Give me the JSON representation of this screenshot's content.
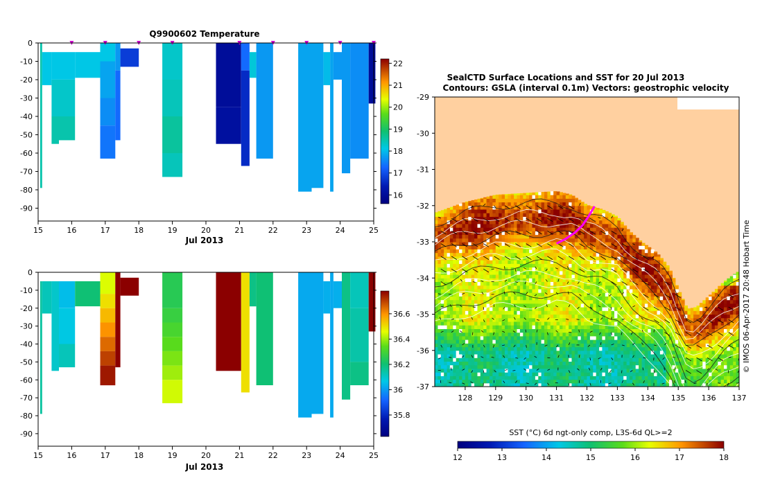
{
  "chart_data": [
    {
      "type": "heatmap",
      "title": "Q9900602  Temperature",
      "xlabel": "Jul 2013",
      "ylabel": "",
      "x_ticks": [
        "15",
        "16",
        "17",
        "18",
        "19",
        "20",
        "21",
        "22",
        "23",
        "24",
        "25"
      ],
      "xlim": [
        15,
        25
      ],
      "y_ticks": [
        "0",
        "-10",
        "-20",
        "-30",
        "-40",
        "-50",
        "-60",
        "-70",
        "-80",
        "-90"
      ],
      "ylim": [
        -97,
        0
      ],
      "profile_markers": [
        16,
        17,
        18,
        19,
        21,
        22,
        23,
        24,
        25
      ],
      "colorbar": {
        "ticks": [
          "16",
          "17",
          "18",
          "19",
          "20",
          "21",
          "22"
        ],
        "range": [
          15.6,
          22.2
        ]
      },
      "profiles": [
        {
          "x0": 15.06,
          "x1": 15.12,
          "depth": 79,
          "top": 0,
          "cells": [
            {
              "d": 79,
              "v": 18.5
            }
          ]
        },
        {
          "x0": 15.12,
          "x1": 15.4,
          "depth": 23,
          "top": 5,
          "cells": [
            {
              "d": 23,
              "v": 18.1
            }
          ]
        },
        {
          "x0": 15.4,
          "x1": 15.62,
          "depth": 55,
          "top": 5,
          "cells": [
            {
              "d": 20,
              "v": 18.1
            },
            {
              "d": 40,
              "v": 18.3
            },
            {
              "d": 55,
              "v": 18.5
            }
          ]
        },
        {
          "x0": 15.62,
          "x1": 16.1,
          "depth": 53,
          "top": 5,
          "cells": [
            {
              "d": 20,
              "v": 18.1
            },
            {
              "d": 40,
              "v": 18.3
            },
            {
              "d": 53,
              "v": 18.5
            }
          ]
        },
        {
          "x0": 16.1,
          "x1": 16.85,
          "depth": 19,
          "top": 5,
          "cells": [
            {
              "d": 19,
              "v": 18.1
            }
          ]
        },
        {
          "x0": 16.85,
          "x1": 17.3,
          "depth": 63,
          "top": 0,
          "cells": [
            {
              "d": 10,
              "v": 18.1
            },
            {
              "d": 30,
              "v": 17.8
            },
            {
              "d": 45,
              "v": 17.6
            },
            {
              "d": 63,
              "v": 17.4
            }
          ]
        },
        {
          "x0": 17.3,
          "x1": 17.45,
          "depth": 53,
          "top": 0,
          "cells": [
            {
              "d": 15,
              "v": 17.7
            },
            {
              "d": 53,
              "v": 17.3
            }
          ]
        },
        {
          "x0": 17.45,
          "x1": 18.0,
          "depth": 13,
          "top": 3,
          "cells": [
            {
              "d": 13,
              "v": 16.8
            }
          ]
        },
        {
          "x0": 18.7,
          "x1": 19.3,
          "depth": 73,
          "top": 0,
          "cells": [
            {
              "d": 20,
              "v": 18.3
            },
            {
              "d": 40,
              "v": 18.4
            },
            {
              "d": 60,
              "v": 18.6
            },
            {
              "d": 73,
              "v": 18.4
            }
          ]
        },
        {
          "x0": 20.3,
          "x1": 21.05,
          "depth": 55,
          "top": 0,
          "cells": [
            {
              "d": 35,
              "v": 16.0
            },
            {
              "d": 55,
              "v": 16.1
            }
          ]
        },
        {
          "x0": 21.05,
          "x1": 21.3,
          "depth": 67,
          "top": 0,
          "cells": [
            {
              "d": 15,
              "v": 17.3
            },
            {
              "d": 67,
              "v": 16.6
            }
          ]
        },
        {
          "x0": 21.3,
          "x1": 21.5,
          "depth": 19,
          "top": 5,
          "cells": [
            {
              "d": 19,
              "v": 18.2
            }
          ]
        },
        {
          "x0": 21.5,
          "x1": 22.0,
          "depth": 63,
          "top": 0,
          "cells": [
            {
              "d": 63,
              "v": 17.7
            }
          ]
        },
        {
          "x0": 22.75,
          "x1": 23.15,
          "depth": 81,
          "top": 0,
          "cells": [
            {
              "d": 81,
              "v": 17.8
            }
          ]
        },
        {
          "x0": 23.15,
          "x1": 23.5,
          "depth": 79,
          "top": 0,
          "cells": [
            {
              "d": 79,
              "v": 17.8
            }
          ]
        },
        {
          "x0": 23.5,
          "x1": 23.7,
          "depth": 23,
          "top": 5,
          "cells": [
            {
              "d": 23,
              "v": 18.0
            }
          ]
        },
        {
          "x0": 23.7,
          "x1": 23.8,
          "depth": 81,
          "top": 0,
          "cells": [
            {
              "d": 81,
              "v": 17.8
            }
          ]
        },
        {
          "x0": 23.8,
          "x1": 24.05,
          "depth": 20,
          "top": 5,
          "cells": [
            {
              "d": 20,
              "v": 17.7
            }
          ]
        },
        {
          "x0": 24.05,
          "x1": 24.3,
          "depth": 71,
          "top": 0,
          "cells": [
            {
              "d": 71,
              "v": 17.7
            }
          ]
        },
        {
          "x0": 24.3,
          "x1": 24.85,
          "depth": 63,
          "top": 0,
          "cells": [
            {
              "d": 63,
              "v": 17.6
            }
          ]
        },
        {
          "x0": 24.85,
          "x1": 25.05,
          "depth": 33,
          "top": 0,
          "cells": [
            {
              "d": 33,
              "v": 16.0
            }
          ]
        }
      ]
    },
    {
      "type": "heatmap",
      "title": "",
      "xlabel": "Jul 2013",
      "ylabel": "",
      "x_ticks": [
        "15",
        "16",
        "17",
        "18",
        "19",
        "20",
        "21",
        "22",
        "23",
        "24",
        "25"
      ],
      "xlim": [
        15,
        25
      ],
      "y_ticks": [
        "0",
        "-10",
        "-20",
        "-30",
        "-40",
        "-50",
        "-60",
        "-70",
        "-80",
        "-90"
      ],
      "ylim": [
        -97,
        0
      ],
      "colorbar": {
        "ticks": [
          "35.8",
          "36",
          "36.2",
          "36.4",
          "36.6"
        ],
        "range": [
          35.63,
          36.78
        ]
      },
      "profiles": [
        {
          "x0": 15.06,
          "x1": 15.12,
          "depth": 79,
          "top": 5,
          "cells": [
            {
              "d": 79,
              "v": 36.15
            }
          ]
        },
        {
          "x0": 15.12,
          "x1": 15.4,
          "depth": 23,
          "top": 5,
          "cells": [
            {
              "d": 23,
              "v": 36.12
            }
          ]
        },
        {
          "x0": 15.4,
          "x1": 15.62,
          "depth": 55,
          "top": 5,
          "cells": [
            {
              "d": 55,
              "v": 36.1
            }
          ]
        },
        {
          "x0": 15.62,
          "x1": 16.1,
          "depth": 53,
          "top": 5,
          "cells": [
            {
              "d": 20,
              "v": 36.05
            },
            {
              "d": 40,
              "v": 36.07
            },
            {
              "d": 53,
              "v": 36.12
            }
          ]
        },
        {
          "x0": 16.1,
          "x1": 16.85,
          "depth": 19,
          "top": 5,
          "cells": [
            {
              "d": 19,
              "v": 36.2
            }
          ]
        },
        {
          "x0": 16.85,
          "x1": 17.3,
          "depth": 63,
          "top": 0,
          "cells": [
            {
              "d": 12,
              "v": 36.45
            },
            {
              "d": 20,
              "v": 36.5
            },
            {
              "d": 28,
              "v": 36.55
            },
            {
              "d": 36,
              "v": 36.6
            },
            {
              "d": 44,
              "v": 36.65
            },
            {
              "d": 52,
              "v": 36.7
            },
            {
              "d": 63,
              "v": 36.75
            }
          ]
        },
        {
          "x0": 17.3,
          "x1": 17.45,
          "depth": 53,
          "top": 0,
          "cells": [
            {
              "d": 53,
              "v": 36.78
            }
          ]
        },
        {
          "x0": 17.45,
          "x1": 18.0,
          "depth": 13,
          "top": 3,
          "cells": [
            {
              "d": 13,
              "v": 36.78
            }
          ]
        },
        {
          "x0": 18.7,
          "x1": 19.3,
          "depth": 73,
          "top": 0,
          "cells": [
            {
              "d": 20,
              "v": 36.25
            },
            {
              "d": 28,
              "v": 36.28
            },
            {
              "d": 36,
              "v": 36.31
            },
            {
              "d": 44,
              "v": 36.34
            },
            {
              "d": 52,
              "v": 36.37
            },
            {
              "d": 60,
              "v": 36.4
            },
            {
              "d": 73,
              "v": 36.44
            }
          ]
        },
        {
          "x0": 20.3,
          "x1": 21.05,
          "depth": 55,
          "top": 0,
          "cells": [
            {
              "d": 55,
              "v": 36.78
            }
          ]
        },
        {
          "x0": 21.05,
          "x1": 21.3,
          "depth": 67,
          "top": 0,
          "cells": [
            {
              "d": 67,
              "v": 36.5
            }
          ]
        },
        {
          "x0": 21.3,
          "x1": 21.5,
          "depth": 19,
          "top": 0,
          "cells": [
            {
              "d": 19,
              "v": 36.18
            }
          ]
        },
        {
          "x0": 21.5,
          "x1": 22.0,
          "depth": 63,
          "top": 0,
          "cells": [
            {
              "d": 63,
              "v": 36.2
            }
          ]
        },
        {
          "x0": 22.75,
          "x1": 23.15,
          "depth": 81,
          "top": 0,
          "cells": [
            {
              "d": 81,
              "v": 36.02
            }
          ]
        },
        {
          "x0": 23.15,
          "x1": 23.5,
          "depth": 79,
          "top": 0,
          "cells": [
            {
              "d": 79,
              "v": 36.02
            }
          ]
        },
        {
          "x0": 23.5,
          "x1": 23.7,
          "depth": 23,
          "top": 5,
          "cells": [
            {
              "d": 23,
              "v": 36.03
            }
          ]
        },
        {
          "x0": 23.7,
          "x1": 23.8,
          "depth": 81,
          "top": 0,
          "cells": [
            {
              "d": 81,
              "v": 36.02
            }
          ]
        },
        {
          "x0": 23.8,
          "x1": 24.05,
          "depth": 20,
          "top": 5,
          "cells": [
            {
              "d": 20,
              "v": 36.03
            }
          ]
        },
        {
          "x0": 24.05,
          "x1": 24.3,
          "depth": 71,
          "top": 0,
          "cells": [
            {
              "d": 71,
              "v": 36.18
            }
          ]
        },
        {
          "x0": 24.3,
          "x1": 24.85,
          "depth": 63,
          "top": 0,
          "cells": [
            {
              "d": 20,
              "v": 36.12
            },
            {
              "d": 50,
              "v": 36.14
            },
            {
              "d": 63,
              "v": 36.18
            }
          ]
        },
        {
          "x0": 24.85,
          "x1": 25.05,
          "depth": 33,
          "top": 0,
          "cells": [
            {
              "d": 33,
              "v": 36.78
            }
          ]
        }
      ]
    },
    {
      "type": "heatmap",
      "title": "SealCTD Surface Locations and SST for 20 Jul 2013",
      "subtitle": "Contours: GSLA (interval 0.1m)  Vectors: geostrophic velocity",
      "xlabel": "",
      "ylabel": "",
      "x_ticks": [
        "128",
        "129",
        "130",
        "131",
        "132",
        "133",
        "134",
        "135",
        "136",
        "137"
      ],
      "xlim": [
        127.0,
        137.0
      ],
      "y_ticks": [
        "-29",
        "-30",
        "-31",
        "-32",
        "-33",
        "-34",
        "-35",
        "-36",
        "-37"
      ],
      "ylim": [
        -37,
        -29
      ],
      "colorbar": {
        "label": "SST (°C) 6d ngt-only comp, L3S-6d QL>=2",
        "ticks": [
          "12",
          "13",
          "14",
          "15",
          "16",
          "17",
          "18"
        ],
        "range": [
          12,
          18
        ]
      },
      "track": {
        "lon": [
          131.0,
          131.3,
          131.6,
          131.85,
          132.05,
          132.25
        ],
        "lat": [
          -33.05,
          -32.92,
          -32.75,
          -32.55,
          -32.3,
          -32.02
        ]
      },
      "coastline": {
        "lon": [
          127.0,
          128.0,
          129.0,
          130.0,
          131.0,
          131.5,
          132.0,
          132.5,
          133.0,
          133.4,
          133.8,
          134.3,
          134.7,
          135.0,
          135.3,
          135.6,
          136.0,
          136.5,
          137.0
        ],
        "lat": [
          -32.2,
          -31.9,
          -31.7,
          -31.65,
          -31.6,
          -31.7,
          -31.98,
          -32.1,
          -32.3,
          -32.7,
          -33.0,
          -33.3,
          -33.7,
          -34.3,
          -34.85,
          -34.8,
          -34.5,
          -34.1,
          -33.8
        ]
      },
      "watermark": "© IMOS 06-Apr-2017 20:48 Hobart Time"
    }
  ]
}
